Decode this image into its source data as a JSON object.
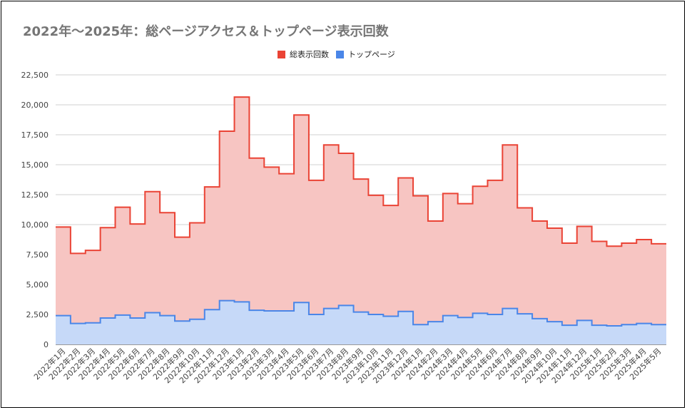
{
  "title": "2022年〜2025年：総ページアクセス＆トップページ表示回数",
  "legend": [
    {
      "label": "総表示回数",
      "color": "#ea4335"
    },
    {
      "label": "トップページ",
      "color": "#4a86e8"
    }
  ],
  "chart_data": {
    "type": "area",
    "title": "2022年〜2025年：総ページアクセス＆トップページ表示回数",
    "xlabel": "",
    "ylabel": "",
    "ylim": [
      0,
      22500
    ],
    "yticks": [
      "0",
      "2,500",
      "5,000",
      "7,500",
      "10,000",
      "12,500",
      "15,000",
      "17,500",
      "20,000",
      "22,500"
    ],
    "ytick_values": [
      0,
      2500,
      5000,
      7500,
      10000,
      12500,
      15000,
      17500,
      20000,
      22500
    ],
    "grid": true,
    "legend_position": "top",
    "categories": [
      "2022年1月",
      "2022年2月",
      "2022年3月",
      "2022年4月",
      "2022年5月",
      "2022年6月",
      "2022年7月",
      "2022年8月",
      "2022年9月",
      "2022年10月",
      "2022年11月",
      "2022年12月",
      "2023年1月",
      "2023年2月",
      "2023年3月",
      "2023年4月",
      "2023年5月",
      "2023年6月",
      "2023年7月",
      "2023年8月",
      "2023年9月",
      "2023年10月",
      "2023年11月",
      "2023年12月",
      "2024年1月",
      "2024年2月",
      "2024年3月",
      "2024年4月",
      "2024年5月",
      "2024年6月",
      "2024年7月",
      "2024年8月",
      "2024年9月",
      "2024年10月",
      "2024年11月",
      "2024年12月",
      "2025年1月",
      "2025年2月",
      "2025年3月",
      "2025年4月",
      "2025年5月"
    ],
    "series": [
      {
        "name": "総表示回数",
        "color": "#ea4335",
        "fill": "#f7c5c2",
        "values": [
          9800,
          7600,
          7850,
          9750,
          11450,
          10050,
          12750,
          11000,
          8950,
          10150,
          13150,
          17800,
          20650,
          15550,
          14800,
          14250,
          19150,
          13700,
          16650,
          15950,
          13800,
          12450,
          11600,
          13900,
          12400,
          10300,
          12600,
          11750,
          13200,
          13700,
          16650,
          11400,
          10300,
          9700,
          8450,
          9850,
          8600,
          8200,
          8450,
          8750,
          8400
        ]
      },
      {
        "name": "トップページ",
        "color": "#4a86e8",
        "fill": "#c6d9f8",
        "values": [
          2400,
          1750,
          1800,
          2200,
          2450,
          2200,
          2650,
          2400,
          1950,
          2100,
          2900,
          3650,
          3550,
          2850,
          2800,
          2800,
          3500,
          2500,
          3000,
          3250,
          2700,
          2500,
          2350,
          2750,
          1650,
          1900,
          2400,
          2250,
          2600,
          2500,
          3000,
          2550,
          2150,
          1900,
          1600,
          2000,
          1600,
          1550,
          1650,
          1750,
          1650
        ]
      }
    ]
  }
}
